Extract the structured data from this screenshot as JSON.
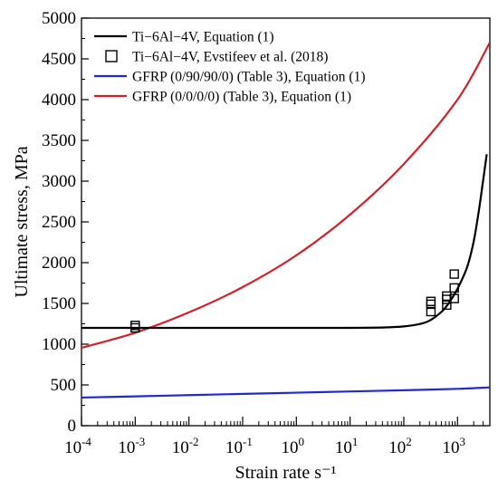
{
  "chart_data": {
    "type": "line",
    "xlabel": "Strain rate s⁻¹",
    "ylabel": "Ultimate stress, MPa",
    "xscale": "log",
    "xlim": [
      0.0001,
      4000
    ],
    "ylim": [
      0,
      5000
    ],
    "x_ticks": [
      {
        "value": 0.0001,
        "base": "10",
        "exp": "-4"
      },
      {
        "value": 0.001,
        "base": "10",
        "exp": "-3"
      },
      {
        "value": 0.01,
        "base": "10",
        "exp": "-2"
      },
      {
        "value": 0.1,
        "base": "10",
        "exp": "-1"
      },
      {
        "value": 1,
        "base": "10",
        "exp": "0"
      },
      {
        "value": 10,
        "base": "10",
        "exp": "1"
      },
      {
        "value": 100,
        "base": "10",
        "exp": "2"
      },
      {
        "value": 1000,
        "base": "10",
        "exp": "3"
      }
    ],
    "y_ticks": [
      "0",
      "500",
      "1000",
      "1500",
      "2000",
      "2500",
      "3000",
      "3500",
      "4000",
      "4500",
      "5000"
    ],
    "legend_position": "top-left",
    "series": [
      {
        "name": "Ti−6Al−4V, Equation (1)",
        "kind": "line",
        "color": "#000000",
        "x": [
          0.0001,
          0.001,
          0.01,
          0.1,
          1,
          10,
          30,
          50,
          100,
          200,
          300,
          500,
          700,
          1000,
          1500,
          2000,
          2500,
          3000,
          3500
        ],
        "y": [
          1200,
          1200,
          1200,
          1200,
          1200,
          1200,
          1203,
          1207,
          1218,
          1248,
          1288,
          1395,
          1510,
          1680,
          1940,
          2260,
          2640,
          3010,
          3330
        ]
      },
      {
        "name": "Ti−6Al−4V, Evstifeev et al. (2018)",
        "kind": "scatter",
        "color": "#000000",
        "marker": "square",
        "x": [
          0.001,
          0.001,
          320,
          320,
          320,
          630,
          630,
          630,
          870,
          870,
          870
        ],
        "y": [
          1200,
          1230,
          1400,
          1490,
          1525,
          1480,
          1550,
          1590,
          1560,
          1690,
          1860
        ]
      },
      {
        "name": "GFRP (0/90/90/0) (Table 3), Equation (1)",
        "kind": "line",
        "color": "#1f2bcf",
        "x": [
          0.0001,
          0.001,
          0.01,
          0.1,
          1,
          10,
          100,
          1000,
          4000
        ],
        "y": [
          345,
          360,
          375,
          390,
          405,
          420,
          435,
          452,
          470
        ]
      },
      {
        "name": "GFRP (0/0/0/0) (Table 3), Equation (1)",
        "kind": "line",
        "color": "#d0202a",
        "x": [
          0.0001,
          0.001,
          0.01,
          0.1,
          1,
          10,
          100,
          1000,
          4000
        ],
        "y": [
          955,
          1140,
          1390,
          1700,
          2090,
          2590,
          3210,
          4000,
          4700
        ]
      }
    ]
  }
}
